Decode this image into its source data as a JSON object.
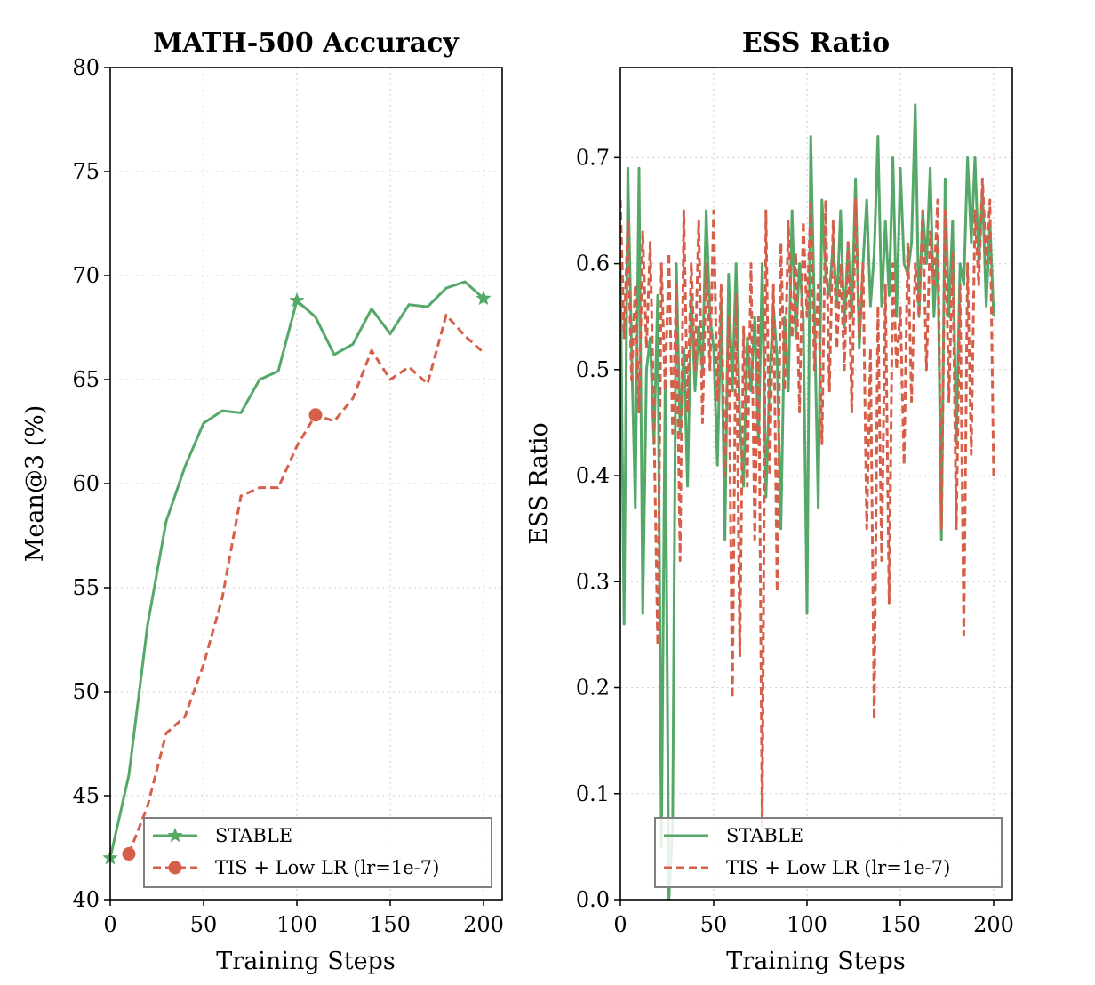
{
  "colors": {
    "stable": "#55a868",
    "tis": "#d65f4a"
  },
  "chart_data": [
    {
      "type": "line",
      "title": "MATH-500 Accuracy",
      "xlabel": "Training Steps",
      "ylabel": "Mean@3 (%)",
      "xlim": [
        0,
        210
      ],
      "ylim": [
        40,
        80
      ],
      "xticks": [
        0,
        50,
        100,
        150,
        200
      ],
      "yticks": [
        40,
        45,
        50,
        55,
        60,
        65,
        70,
        75,
        80
      ],
      "legend_position": "lower-right",
      "series": [
        {
          "name": "STABLE",
          "style": "solid",
          "color_key": "stable",
          "marker": "star",
          "x": [
            0,
            10,
            20,
            30,
            40,
            50,
            60,
            70,
            80,
            90,
            100,
            110,
            120,
            130,
            140,
            150,
            160,
            170,
            180,
            190,
            200
          ],
          "y": [
            42.0,
            46.0,
            53.2,
            58.2,
            60.8,
            62.9,
            63.5,
            63.4,
            65.0,
            65.4,
            68.8,
            68.0,
            66.2,
            66.7,
            68.4,
            67.2,
            68.6,
            68.5,
            69.4,
            69.7,
            68.9
          ],
          "marker_x": [
            0,
            100,
            200
          ]
        },
        {
          "name": "TIS + Low LR (lr=1e-7)",
          "style": "dashed",
          "color_key": "tis",
          "marker": "circle",
          "x": [
            10,
            20,
            30,
            40,
            50,
            60,
            70,
            80,
            90,
            100,
            110,
            120,
            130,
            140,
            150,
            160,
            170,
            180,
            190,
            200
          ],
          "y": [
            42.2,
            44.5,
            48.0,
            48.8,
            51.3,
            54.5,
            59.4,
            59.8,
            59.8,
            61.8,
            63.3,
            63.0,
            64.1,
            66.4,
            65.0,
            65.6,
            64.8,
            68.1,
            67.1,
            66.3
          ],
          "marker_x": [
            10,
            110
          ]
        }
      ]
    },
    {
      "type": "line",
      "title": "ESS Ratio",
      "xlabel": "Training Steps",
      "ylabel": "ESS Ratio",
      "xlim": [
        0,
        210
      ],
      "ylim": [
        0.0,
        0.785
      ],
      "xticks": [
        0,
        50,
        100,
        150,
        200
      ],
      "yticks": [
        0.0,
        0.1,
        0.2,
        0.3,
        0.4,
        0.5,
        0.6,
        0.7
      ],
      "legend_position": "lower-right",
      "series": [
        {
          "name": "STABLE",
          "style": "solid",
          "color_key": "stable",
          "x": [
            0,
            2,
            4,
            6,
            8,
            10,
            12,
            14,
            16,
            18,
            20,
            22,
            24,
            26,
            28,
            30,
            32,
            34,
            36,
            38,
            40,
            42,
            44,
            46,
            48,
            50,
            52,
            54,
            56,
            58,
            60,
            62,
            64,
            66,
            68,
            70,
            72,
            74,
            76,
            78,
            80,
            82,
            84,
            86,
            88,
            90,
            92,
            94,
            96,
            98,
            100,
            102,
            104,
            106,
            108,
            110,
            112,
            114,
            116,
            118,
            120,
            122,
            124,
            126,
            128,
            130,
            132,
            134,
            136,
            138,
            140,
            142,
            144,
            146,
            148,
            150,
            152,
            154,
            156,
            158,
            160,
            162,
            164,
            166,
            168,
            170,
            172,
            174,
            176,
            178,
            180,
            182,
            184,
            186,
            188,
            190,
            192,
            194,
            196,
            198,
            200
          ],
          "y": [
            0.6,
            0.26,
            0.69,
            0.52,
            0.37,
            0.69,
            0.27,
            0.5,
            0.53,
            0.43,
            0.57,
            0.05,
            0.49,
            0.0,
            0.07,
            0.6,
            0.44,
            0.52,
            0.39,
            0.57,
            0.48,
            0.54,
            0.5,
            0.65,
            0.55,
            0.52,
            0.41,
            0.56,
            0.34,
            0.59,
            0.48,
            0.6,
            0.45,
            0.39,
            0.53,
            0.48,
            0.55,
            0.43,
            0.6,
            0.38,
            0.49,
            0.56,
            0.51,
            0.35,
            0.55,
            0.48,
            0.65,
            0.53,
            0.6,
            0.55,
            0.27,
            0.72,
            0.55,
            0.37,
            0.66,
            0.59,
            0.57,
            0.62,
            0.56,
            0.65,
            0.54,
            0.62,
            0.55,
            0.68,
            0.52,
            0.6,
            0.66,
            0.56,
            0.61,
            0.72,
            0.56,
            0.64,
            0.57,
            0.7,
            0.55,
            0.69,
            0.6,
            0.59,
            0.62,
            0.75,
            0.55,
            0.65,
            0.6,
            0.69,
            0.55,
            0.62,
            0.34,
            0.68,
            0.55,
            0.64,
            0.43,
            0.6,
            0.58,
            0.7,
            0.62,
            0.7,
            0.6,
            0.67,
            0.56,
            0.64,
            0.55
          ]
        },
        {
          "name": "TIS + Low LR (lr=1e-7)",
          "style": "dashed",
          "color_key": "tis",
          "x": [
            0,
            2,
            4,
            6,
            8,
            10,
            12,
            14,
            16,
            18,
            20,
            22,
            24,
            26,
            28,
            30,
            32,
            34,
            36,
            38,
            40,
            42,
            44,
            46,
            48,
            50,
            52,
            54,
            56,
            58,
            60,
            62,
            64,
            66,
            68,
            70,
            72,
            74,
            76,
            78,
            80,
            82,
            84,
            86,
            88,
            90,
            92,
            94,
            96,
            98,
            100,
            102,
            104,
            106,
            108,
            110,
            112,
            114,
            116,
            118,
            120,
            122,
            124,
            126,
            128,
            130,
            132,
            134,
            136,
            138,
            140,
            142,
            144,
            146,
            148,
            150,
            152,
            154,
            156,
            158,
            160,
            162,
            164,
            166,
            168,
            170,
            172,
            174,
            176,
            178,
            180,
            182,
            184,
            186,
            188,
            190,
            192,
            194,
            196,
            198,
            200
          ],
          "y": [
            0.66,
            0.53,
            0.64,
            0.49,
            0.58,
            0.46,
            0.63,
            0.52,
            0.62,
            0.45,
            0.24,
            0.6,
            0.48,
            0.61,
            0.44,
            0.58,
            0.32,
            0.65,
            0.46,
            0.6,
            0.5,
            0.64,
            0.45,
            0.6,
            0.5,
            0.65,
            0.47,
            0.58,
            0.4,
            0.55,
            0.19,
            0.57,
            0.23,
            0.54,
            0.39,
            0.6,
            0.34,
            0.55,
            0.07,
            0.65,
            0.4,
            0.58,
            0.29,
            0.62,
            0.48,
            0.64,
            0.53,
            0.61,
            0.46,
            0.64,
            0.55,
            0.66,
            0.5,
            0.58,
            0.43,
            0.66,
            0.48,
            0.64,
            0.52,
            0.6,
            0.5,
            0.62,
            0.46,
            0.66,
            0.53,
            0.6,
            0.35,
            0.52,
            0.17,
            0.56,
            0.32,
            0.58,
            0.28,
            0.6,
            0.5,
            0.56,
            0.41,
            0.62,
            0.47,
            0.6,
            0.55,
            0.65,
            0.5,
            0.63,
            0.58,
            0.66,
            0.35,
            0.65,
            0.47,
            0.61,
            0.35,
            0.58,
            0.25,
            0.6,
            0.42,
            0.65,
            0.58,
            0.68,
            0.6,
            0.66,
            0.4
          ]
        }
      ]
    }
  ]
}
